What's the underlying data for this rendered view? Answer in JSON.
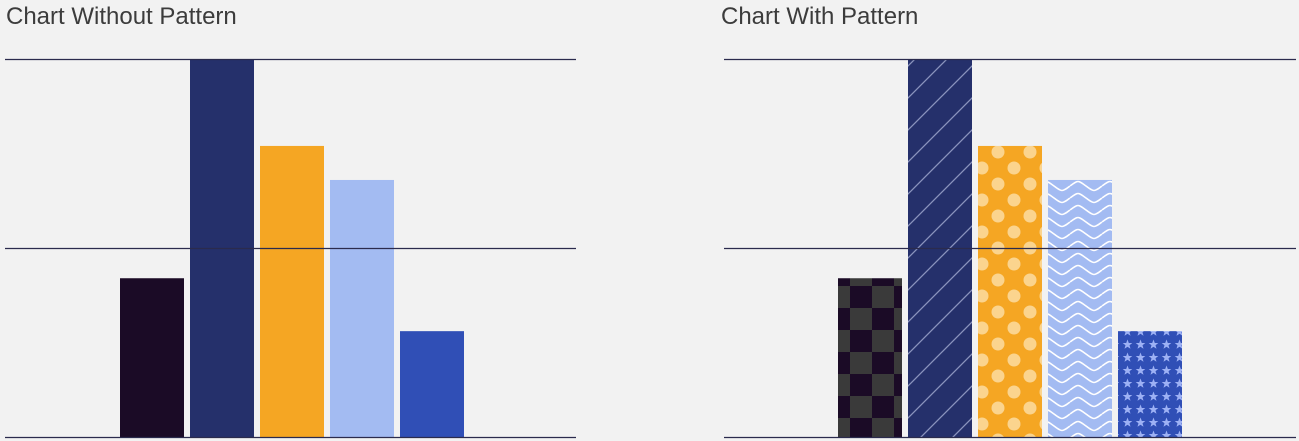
{
  "chart_data": [
    {
      "type": "bar",
      "title": "Chart Without Pattern",
      "xlabel": "",
      "ylabel": "",
      "ylim": [
        0,
        100
      ],
      "gridlines": [
        0,
        50,
        100
      ],
      "grid": true,
      "legend": "none",
      "values": [
        42,
        100,
        77,
        68,
        28
      ],
      "colors": [
        "#1b0b26",
        "#25306b",
        "#f5a623",
        "#a3bbf2",
        "#304fb6"
      ],
      "patterns": []
    },
    {
      "type": "bar",
      "title": "Chart With Pattern",
      "xlabel": "",
      "ylabel": "",
      "ylim": [
        0,
        100
      ],
      "gridlines": [
        0,
        50,
        100
      ],
      "grid": true,
      "legend": "none",
      "values": [
        42,
        100,
        77,
        68,
        28
      ],
      "colors": [
        "#1b0b26",
        "#25306b",
        "#f5a623",
        "#a3bbf2",
        "#304fb6"
      ],
      "patterns": [
        "checkerboard",
        "diagonal-lines",
        "dots",
        "waves",
        "stars"
      ]
    }
  ]
}
